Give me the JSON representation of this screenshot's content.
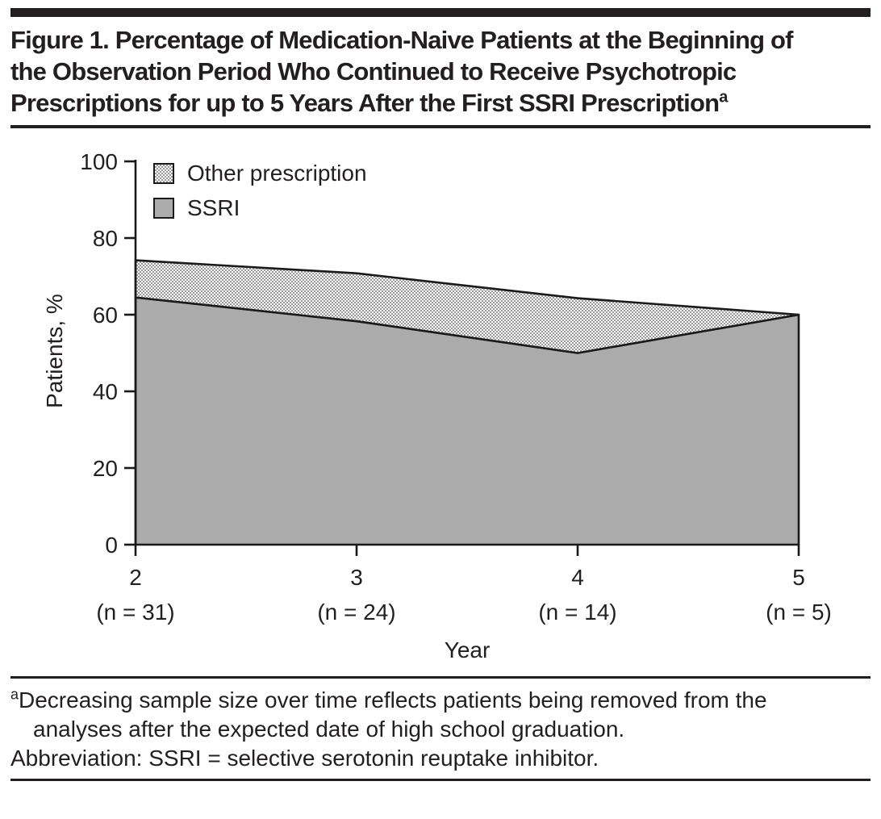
{
  "header": {
    "title": "Figure 1. Percentage of Medication-Naive Patients at the Beginning of the Observation Period Who Continued to Receive Psychotropic Prescriptions for up to 5 Years After the First SSRI Prescription",
    "title_superscript": "a"
  },
  "chart_data": {
    "type": "area",
    "stacked": true,
    "title": "",
    "xlabel": "Year",
    "ylabel": "Patients, %",
    "xlim": [
      2,
      5
    ],
    "ylim": [
      0,
      100
    ],
    "yticks": [
      0,
      20,
      40,
      60,
      80,
      100
    ],
    "ytick_labels": [
      "0",
      "20",
      "40",
      "60",
      "80",
      "100"
    ],
    "x": [
      2,
      3,
      4,
      5
    ],
    "x_tick_labels": [
      "2",
      "3",
      "4",
      "5"
    ],
    "x_sublabels": [
      "(n = 31)",
      "(n = 24)",
      "(n = 14)",
      "(n = 5)"
    ],
    "grid": false,
    "legend_position": "inside-top-left",
    "series": [
      {
        "name": "SSRI",
        "values": [
          64.5,
          58.3,
          50.0,
          60.0
        ],
        "fill": "solid",
        "color": "#ababab"
      },
      {
        "name": "Other prescription",
        "values": [
          9.7,
          12.5,
          14.3,
          0.0
        ],
        "fill": "checker",
        "color": "#999999"
      }
    ],
    "stacked_totals": [
      74.2,
      70.8,
      64.3,
      60.0
    ],
    "line_color": "#1a1a1a",
    "legend": [
      {
        "label": "Other prescription",
        "swatch": "checker"
      },
      {
        "label": "SSRI",
        "swatch": "solid"
      }
    ]
  },
  "footnotes": {
    "note_superscript": "a",
    "note_text": "Decreasing sample size over time reflects patients being removed from the analyses after the expected date of high school graduation.",
    "abbreviation_text": "Abbreviation: SSRI = selective serotonin reuptake inhibitor."
  }
}
